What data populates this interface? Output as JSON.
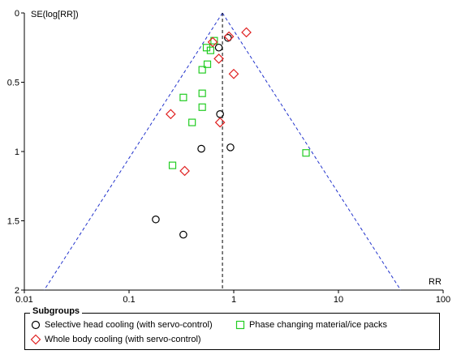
{
  "chart_data": {
    "type": "scatter",
    "subtype": "funnel",
    "xlabel": "RR",
    "ylabel": "SE(log[RR])",
    "xscale": "log",
    "xlim": [
      0.01,
      100
    ],
    "ylim": [
      0,
      2
    ],
    "yreversed": true,
    "xticks": [
      "0.01",
      "0.1",
      "1",
      "10",
      "100"
    ],
    "yticks": [
      "0",
      "0.5",
      "1",
      "1.5",
      "2"
    ],
    "pooled_rr": 0.78,
    "grid": false,
    "legend": {
      "title": "Subgroups",
      "placement": "bottom",
      "entries": [
        {
          "label": "Selective head cooling (with servo-control)",
          "marker": "circle",
          "color": "#000000"
        },
        {
          "label": "Phase changing material/ice packs",
          "marker": "square",
          "color": "#22cc22"
        },
        {
          "label": "Whole body cooling (with servo-control)",
          "marker": "diamond",
          "color": "#e02020"
        }
      ]
    },
    "series": [
      {
        "name": "Selective head cooling (with servo-control)",
        "marker": "circle",
        "color": "#000000",
        "points": [
          [
            0.88,
            0.18
          ],
          [
            0.72,
            0.25
          ],
          [
            0.74,
            0.73
          ],
          [
            0.49,
            0.98
          ],
          [
            0.93,
            0.97
          ],
          [
            0.18,
            1.49
          ],
          [
            0.33,
            1.6
          ]
        ]
      },
      {
        "name": "Phase changing material/ice packs",
        "marker": "square",
        "color": "#22cc22",
        "points": [
          [
            0.65,
            0.2
          ],
          [
            0.55,
            0.25
          ],
          [
            0.6,
            0.27
          ],
          [
            0.56,
            0.37
          ],
          [
            0.5,
            0.41
          ],
          [
            0.5,
            0.58
          ],
          [
            0.33,
            0.61
          ],
          [
            0.5,
            0.68
          ],
          [
            0.4,
            0.79
          ],
          [
            0.26,
            1.1
          ],
          [
            4.9,
            1.01
          ]
        ]
      },
      {
        "name": "Whole body cooling (with servo-control)",
        "marker": "diamond",
        "color": "#e02020",
        "points": [
          [
            1.32,
            0.14
          ],
          [
            0.9,
            0.17
          ],
          [
            0.63,
            0.21
          ],
          [
            0.72,
            0.33
          ],
          [
            1.0,
            0.44
          ],
          [
            0.25,
            0.73
          ],
          [
            0.74,
            0.79
          ],
          [
            0.34,
            1.14
          ]
        ]
      }
    ]
  },
  "colors": {
    "funnel_line": "#2233cc",
    "pooled_line": "#000000",
    "axis": "#000000"
  }
}
